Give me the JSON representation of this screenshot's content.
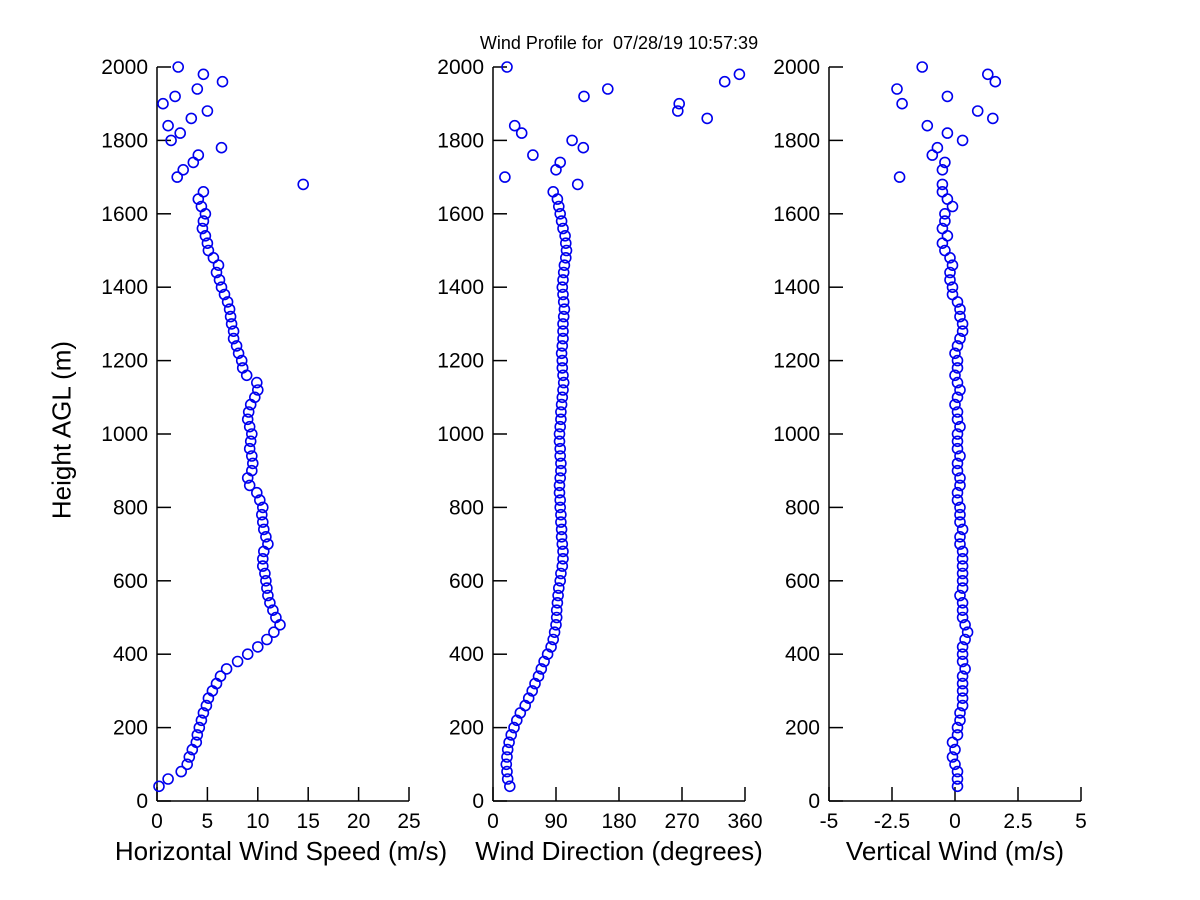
{
  "chart_data": {
    "type": "scatter",
    "title": "Wind Profile for  07/28/19 10:57:39",
    "ylabel": "Height AGL (m)",
    "ylim": [
      0,
      2000
    ],
    "yticks": [
      0,
      200,
      400,
      600,
      800,
      1000,
      1200,
      1400,
      1600,
      1800,
      2000
    ],
    "marker": {
      "shape": "open-circle",
      "color": "#0000EE",
      "radius_px": 5
    },
    "axis_color": "#000000",
    "background_color": "#ffffff",
    "heights_m": [
      40,
      60,
      80,
      100,
      120,
      140,
      160,
      180,
      200,
      220,
      240,
      260,
      280,
      300,
      320,
      340,
      360,
      380,
      400,
      420,
      440,
      460,
      480,
      500,
      520,
      540,
      560,
      580,
      600,
      620,
      640,
      660,
      680,
      700,
      720,
      740,
      760,
      780,
      800,
      820,
      840,
      860,
      880,
      900,
      920,
      940,
      960,
      980,
      1000,
      1020,
      1040,
      1060,
      1080,
      1100,
      1120,
      1140,
      1160,
      1180,
      1200,
      1220,
      1240,
      1260,
      1280,
      1300,
      1320,
      1340,
      1360,
      1380,
      1400,
      1420,
      1440,
      1460,
      1480,
      1500,
      1520,
      1540,
      1560,
      1580,
      1600,
      1620,
      1640,
      1660,
      1680,
      1700,
      1720,
      1740,
      1760,
      1780,
      1800,
      1820,
      1840,
      1860,
      1880,
      1900,
      1920,
      1940,
      1960,
      1980,
      2000
    ],
    "panels": [
      {
        "xlabel": "Horizontal Wind Speed (m/s)",
        "xlim": [
          0,
          25
        ],
        "xticks": [
          0,
          5,
          10,
          15,
          20,
          25
        ],
        "values": [
          0.2,
          1.1,
          2.4,
          3.0,
          3.2,
          3.5,
          3.9,
          4.0,
          4.2,
          4.4,
          4.6,
          4.9,
          5.1,
          5.5,
          5.9,
          6.3,
          6.9,
          8.0,
          9.0,
          10.0,
          10.9,
          11.6,
          12.2,
          11.8,
          11.5,
          11.2,
          11.0,
          10.9,
          10.8,
          10.7,
          10.5,
          10.5,
          10.6,
          11.0,
          10.8,
          10.6,
          10.5,
          10.4,
          10.5,
          10.2,
          9.9,
          9.2,
          9.0,
          9.4,
          9.5,
          9.4,
          9.2,
          9.3,
          9.4,
          9.2,
          9.0,
          9.1,
          9.3,
          9.7,
          10.0,
          9.9,
          8.9,
          8.5,
          8.4,
          8.1,
          7.9,
          7.6,
          7.6,
          7.4,
          7.3,
          7.2,
          7.0,
          6.7,
          6.4,
          6.2,
          5.9,
          6.1,
          5.6,
          5.1,
          5.0,
          4.8,
          4.5,
          4.6,
          4.8,
          4.4,
          4.1,
          4.6,
          14.5,
          2.0,
          2.6,
          3.6,
          4.1,
          6.4,
          1.4,
          2.3,
          1.1,
          3.4,
          5.0,
          0.6,
          1.8,
          4.0,
          6.5,
          4.6,
          2.1
        ]
      },
      {
        "xlabel": "Wind Direction (degrees)",
        "xlim": [
          0,
          360
        ],
        "xticks": [
          0,
          90,
          180,
          270,
          360
        ],
        "values": [
          24,
          21,
          20,
          19,
          20,
          21,
          23,
          26,
          30,
          34,
          39,
          46,
          51,
          56,
          60,
          65,
          69,
          73,
          78,
          83,
          86,
          88,
          90,
          91,
          91,
          92,
          93,
          94,
          96,
          97,
          99,
          100,
          100,
          99,
          98,
          98,
          97,
          97,
          96,
          96,
          95,
          95,
          96,
          97,
          97,
          96,
          96,
          95,
          95,
          96,
          97,
          97,
          98,
          99,
          100,
          101,
          100,
          99,
          99,
          98,
          99,
          100,
          100,
          100,
          101,
          102,
          101,
          100,
          99,
          100,
          101,
          102,
          104,
          105,
          104,
          103,
          100,
          98,
          96,
          94,
          92,
          86,
          121,
          17,
          90,
          96,
          57,
          129,
          113,
          41,
          31,
          306,
          264,
          266,
          130,
          164,
          331,
          352,
          20
        ]
      },
      {
        "xlabel": "Vertical Wind (m/s)",
        "xlim": [
          -5,
          5
        ],
        "xticks": [
          -5,
          -2.5,
          0,
          2.5,
          5
        ],
        "values": [
          0.1,
          0.1,
          0.1,
          0.0,
          -0.1,
          0.0,
          -0.1,
          0.1,
          0.1,
          0.2,
          0.2,
          0.3,
          0.3,
          0.3,
          0.3,
          0.3,
          0.4,
          0.3,
          0.3,
          0.3,
          0.4,
          0.5,
          0.4,
          0.3,
          0.3,
          0.3,
          0.2,
          0.3,
          0.3,
          0.3,
          0.3,
          0.3,
          0.3,
          0.2,
          0.2,
          0.3,
          0.2,
          0.2,
          0.2,
          0.1,
          0.1,
          0.2,
          0.2,
          0.1,
          0.1,
          0.2,
          0.1,
          0.1,
          0.1,
          0.2,
          0.1,
          0.1,
          0.0,
          0.1,
          0.2,
          0.1,
          0.0,
          0.1,
          0.1,
          0.0,
          0.1,
          0.2,
          0.3,
          0.3,
          0.2,
          0.2,
          0.1,
          -0.1,
          -0.1,
          -0.2,
          -0.2,
          -0.1,
          -0.2,
          -0.4,
          -0.5,
          -0.3,
          -0.5,
          -0.4,
          -0.4,
          -0.1,
          -0.3,
          -0.5,
          -0.5,
          -2.2,
          -0.5,
          -0.4,
          -0.9,
          -0.7,
          0.3,
          -0.3,
          -1.1,
          1.5,
          0.9,
          -2.1,
          -0.3,
          -2.3,
          1.6,
          1.3,
          -1.3
        ]
      }
    ]
  }
}
